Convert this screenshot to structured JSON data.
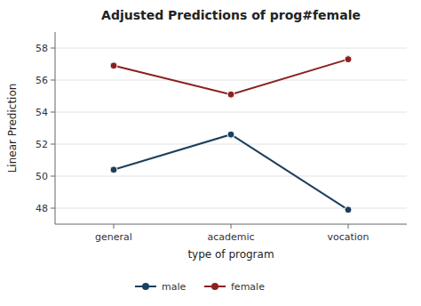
{
  "chart_data": {
    "type": "line",
    "title": "Adjusted Predictions of prog#female",
    "xlabel": "type of program",
    "ylabel": "Linear Prediction",
    "categories": [
      "general",
      "academic",
      "vocation"
    ],
    "series": [
      {
        "name": "male",
        "color": "#1c3f5e",
        "marker": "circle",
        "values": [
          50.4,
          52.6,
          47.9
        ]
      },
      {
        "name": "female",
        "color": "#8b2020",
        "marker": "circle",
        "values": [
          56.9,
          55.1,
          57.3
        ]
      }
    ],
    "ylim": [
      47.0,
      59.0
    ],
    "yticks": [
      48,
      50,
      52,
      54,
      56,
      58
    ],
    "grid": true,
    "legend": "bottom"
  }
}
